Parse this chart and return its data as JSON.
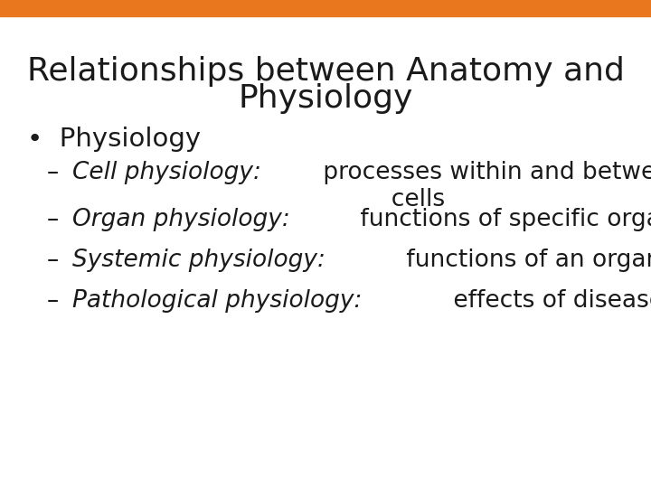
{
  "title_line1": "Relationships between Anatomy and",
  "title_line2": "Physiology",
  "title_fontsize": 26,
  "title_color": "#1a1a1a",
  "background_color": "#ffffff",
  "header_bar_color": "#e8771e",
  "bullet_text": "Physiology",
  "bullet_fontsize": 21,
  "bullet_color": "#1a1a1a",
  "sub_items": [
    {
      "italic_part": "Cell physiology:",
      "normal_part": " processes within and between\n          cells",
      "fontsize": 19
    },
    {
      "italic_part": "Organ physiology:",
      "normal_part": " functions of specific organs",
      "fontsize": 19
    },
    {
      "italic_part": "Systemic physiology:",
      "normal_part": " functions of an organ system",
      "fontsize": 19
    },
    {
      "italic_part": "Pathological physiology:",
      "normal_part": " effects of diseases",
      "fontsize": 19
    }
  ],
  "text_color": "#1a1a1a",
  "fig_width": 7.2,
  "fig_height": 5.4,
  "dpi": 100
}
